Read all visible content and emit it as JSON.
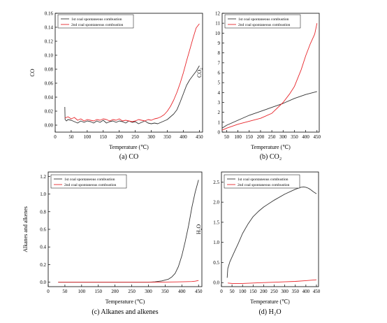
{
  "colors": {
    "series1": "#333333",
    "series2": "#e8262b"
  },
  "legend": [
    "1st coal spontaneous combustion",
    "2nd coal spontaneous combustion"
  ],
  "chart_data": [
    {
      "id": "a",
      "type": "line",
      "caption": "(a) CO",
      "xlabel": "Temperature (℃)",
      "ylabel": "CO",
      "xlim": [
        0,
        460
      ],
      "ylim": [
        -0.01,
        0.16
      ],
      "xticks": [
        0,
        50,
        100,
        150,
        200,
        250,
        300,
        350,
        400,
        450
      ],
      "yticks": [
        0.0,
        0.02,
        0.04,
        0.06,
        0.08,
        0.1,
        0.12,
        0.14,
        0.16
      ],
      "ytick_labels": [
        "0.00",
        "0.02",
        "0.04",
        "0.06",
        "0.08",
        "0.10",
        "0.12",
        "0.14",
        "0.16"
      ],
      "series": [
        {
          "name": "1st coal spontaneous combustion",
          "x": [
            30,
            31,
            35,
            40,
            50,
            60,
            70,
            80,
            90,
            100,
            110,
            120,
            130,
            140,
            150,
            160,
            170,
            180,
            190,
            200,
            210,
            220,
            230,
            240,
            250,
            260,
            270,
            280,
            290,
            300,
            310,
            320,
            330,
            340,
            350,
            360,
            370,
            380,
            390,
            400,
            410,
            420,
            430,
            440,
            450
          ],
          "y": [
            0.026,
            0.008,
            0.006,
            0.008,
            0.007,
            0.005,
            0.003,
            0.006,
            0.004,
            0.006,
            0.005,
            0.003,
            0.006,
            0.004,
            0.007,
            0.003,
            0.005,
            0.006,
            0.004,
            0.006,
            0.005,
            0.003,
            0.006,
            0.004,
            0.005,
            0.002,
            0.004,
            0.006,
            0.003,
            0.002,
            0.003,
            0.002,
            0.004,
            0.006,
            0.008,
            0.012,
            0.016,
            0.022,
            0.033,
            0.045,
            0.057,
            0.065,
            0.071,
            0.077,
            0.085
          ]
        },
        {
          "name": "2nd coal spontaneous combustion",
          "x": [
            30,
            40,
            50,
            60,
            70,
            80,
            90,
            100,
            110,
            120,
            130,
            140,
            150,
            160,
            170,
            180,
            190,
            200,
            210,
            220,
            230,
            240,
            250,
            260,
            270,
            280,
            290,
            300,
            310,
            320,
            330,
            340,
            350,
            360,
            370,
            380,
            390,
            400,
            410,
            420,
            430,
            440,
            450
          ],
          "y": [
            0.01,
            0.012,
            0.009,
            0.011,
            0.007,
            0.009,
            0.006,
            0.008,
            0.007,
            0.006,
            0.008,
            0.007,
            0.009,
            0.008,
            0.006,
            0.008,
            0.007,
            0.009,
            0.006,
            0.007,
            0.006,
            0.005,
            0.006,
            0.008,
            0.007,
            0.006,
            0.008,
            0.007,
            0.009,
            0.01,
            0.012,
            0.015,
            0.02,
            0.027,
            0.036,
            0.047,
            0.06,
            0.075,
            0.092,
            0.108,
            0.124,
            0.139,
            0.145
          ]
        }
      ]
    },
    {
      "id": "b",
      "type": "line",
      "caption": "(b) CO₂",
      "xlabel": "Temperature (℃)",
      "ylabel": "CO₂",
      "xlim": [
        30,
        460
      ],
      "ylim": [
        0,
        12
      ],
      "xticks": [
        50,
        100,
        150,
        200,
        250,
        300,
        350,
        400,
        450
      ],
      "yticks": [
        0,
        1,
        2,
        3,
        4,
        5,
        6,
        7,
        8,
        9,
        10,
        11,
        12
      ],
      "ytick_labels": [
        "0",
        "1",
        "2",
        "3",
        "4",
        "5",
        "6",
        "7",
        "8",
        "9",
        "10",
        "11",
        "12"
      ],
      "series": [
        {
          "name": "1st coal spontaneous combustion",
          "x": [
            30,
            50,
            100,
            150,
            200,
            250,
            300,
            350,
            400,
            450
          ],
          "y": [
            0.4,
            0.7,
            1.2,
            1.7,
            2.1,
            2.5,
            2.9,
            3.4,
            3.8,
            4.1
          ]
        },
        {
          "name": "2nd coal spontaneous combustion",
          "x": [
            30,
            50,
            100,
            150,
            200,
            250,
            300,
            330,
            350,
            380,
            400,
            420,
            440,
            450
          ],
          "y": [
            0.2,
            0.4,
            0.8,
            1.1,
            1.4,
            1.9,
            3.0,
            3.9,
            4.6,
            6.3,
            7.7,
            8.9,
            9.9,
            11.0
          ]
        }
      ]
    },
    {
      "id": "c",
      "type": "line",
      "caption": "(c) Alkanes and alkenes",
      "xlabel": "Temperature (℃)",
      "ylabel": "Alkanes and alkenes",
      "xlim": [
        0,
        460
      ],
      "ylim": [
        -0.05,
        1.25
      ],
      "xticks": [
        0,
        50,
        100,
        150,
        200,
        250,
        300,
        350,
        400,
        450
      ],
      "yticks": [
        0.0,
        0.2,
        0.4,
        0.6,
        0.8,
        1.0,
        1.2
      ],
      "ytick_labels": [
        "0.0",
        "0.2",
        "0.4",
        "0.6",
        "0.8",
        "1.0",
        "1.2"
      ],
      "series": [
        {
          "name": "1st coal spontaneous combustion",
          "x": [
            30,
            100,
            200,
            300,
            320,
            340,
            360,
            370,
            380,
            390,
            400,
            410,
            420,
            430,
            440,
            450
          ],
          "y": [
            0.0,
            0.0,
            0.0,
            0.0,
            0.005,
            0.015,
            0.035,
            0.06,
            0.1,
            0.18,
            0.3,
            0.46,
            0.64,
            0.85,
            1.02,
            1.16
          ]
        },
        {
          "name": "2nd coal spontaneous combustion",
          "x": [
            30,
            100,
            200,
            300,
            350,
            400,
            430,
            440,
            450
          ],
          "y": [
            0.0,
            0.0,
            0.0,
            0.0,
            0.002,
            0.005,
            0.008,
            0.012,
            0.02
          ]
        }
      ]
    },
    {
      "id": "d",
      "type": "line",
      "caption": "(d) H₂O",
      "xlabel": "Temperature (℃)",
      "ylabel": "H₂O",
      "xlim": [
        0,
        460
      ],
      "ylim": [
        -0.1,
        2.75
      ],
      "xticks": [
        0,
        50,
        100,
        150,
        200,
        250,
        300,
        350,
        400,
        450
      ],
      "yticks": [
        0.0,
        0.5,
        1.0,
        1.5,
        2.0,
        2.5
      ],
      "ytick_labels": [
        "0.0",
        "0.5",
        "1.0",
        "1.5",
        "2.0",
        "2.5"
      ],
      "series": [
        {
          "name": "1st coal spontaneous combustion",
          "x": [
            27,
            30,
            40,
            60,
            80,
            100,
            125,
            150,
            175,
            200,
            250,
            300,
            350,
            375,
            390,
            400,
            410,
            420,
            430,
            440,
            450
          ],
          "y": [
            0.12,
            0.35,
            0.52,
            0.75,
            0.98,
            1.22,
            1.45,
            1.64,
            1.77,
            1.88,
            2.05,
            2.2,
            2.32,
            2.37,
            2.38,
            2.37,
            2.35,
            2.32,
            2.28,
            2.24,
            2.21
          ]
        },
        {
          "name": "2nd coal spontaneous combustion",
          "x": [
            30,
            50,
            100,
            150,
            200,
            250,
            300,
            350,
            400,
            450
          ],
          "y": [
            -0.01,
            -0.02,
            -0.02,
            -0.01,
            0.0,
            0.01,
            0.02,
            0.03,
            0.05,
            0.07
          ]
        }
      ]
    }
  ]
}
